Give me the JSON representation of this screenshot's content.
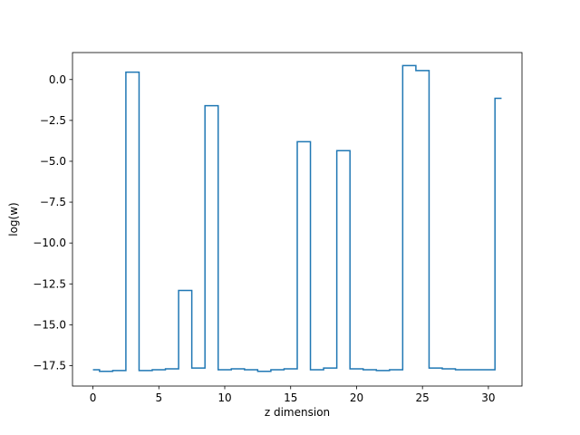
{
  "chart_data": {
    "type": "line",
    "drawstyle": "steps-mid",
    "title": "",
    "xlabel": "z dimension",
    "ylabel": "log(w)",
    "xlim": [
      -1.55,
      32.55
    ],
    "ylim": [
      -18.75,
      1.65
    ],
    "xticks": [
      0,
      5,
      10,
      15,
      20,
      25,
      30
    ],
    "xtick_labels": [
      "0",
      "5",
      "10",
      "15",
      "20",
      "25",
      "30"
    ],
    "yticks": [
      0,
      -2.5,
      -5,
      -7.5,
      -10,
      -12.5,
      -15,
      -17.5
    ],
    "ytick_labels": [
      "0.0",
      "−2.5",
      "−5.0",
      "−7.5",
      "−10.0",
      "−12.5",
      "−15.0",
      "−17.5"
    ],
    "grid": false,
    "legend": "none",
    "series": [
      {
        "color": "#1f77b4",
        "x": [
          0,
          1,
          2,
          3,
          4,
          5,
          6,
          7,
          8,
          9,
          10,
          11,
          12,
          13,
          14,
          15,
          16,
          17,
          18,
          19,
          20,
          21,
          22,
          23,
          24,
          25,
          26,
          27,
          28,
          29,
          30,
          31
        ],
        "y": [
          -17.75,
          -17.85,
          -17.8,
          0.45,
          -17.8,
          -17.75,
          -17.7,
          -12.9,
          -17.65,
          -1.6,
          -17.75,
          -17.7,
          -17.75,
          -17.85,
          -17.75,
          -17.7,
          -3.8,
          -17.75,
          -17.65,
          -4.35,
          -17.7,
          -17.75,
          -17.8,
          -17.75,
          0.85,
          0.55,
          -17.65,
          -17.7,
          -17.75,
          -17.75,
          -17.75,
          -1.15
        ]
      }
    ]
  }
}
